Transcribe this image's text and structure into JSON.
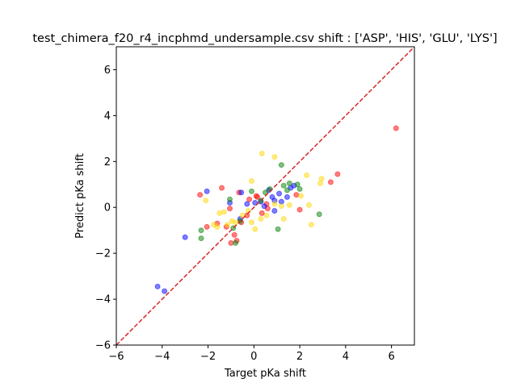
{
  "chart_data": {
    "type": "scatter",
    "title": "test_chimera_f20_r4_incphmd_undersample.csv shift : ['ASP', 'HIS', 'GLU', 'LYS']",
    "xlabel": "Target pKa shift",
    "ylabel": "Predict pKa shift",
    "xlim": [
      -6,
      7
    ],
    "ylim": [
      -6,
      7
    ],
    "xticks": [
      -6,
      -4,
      -2,
      0,
      2,
      4,
      6
    ],
    "yticks": [
      -6,
      -4,
      -2,
      0,
      2,
      4,
      6
    ],
    "xtick_labels": [
      "−6",
      "−4",
      "−2",
      "0",
      "2",
      "4",
      "6"
    ],
    "ytick_labels": [
      "−6",
      "−4",
      "−2",
      "0",
      "2",
      "4",
      "6"
    ],
    "grid": false,
    "reference_line": {
      "from": [
        -6,
        -6
      ],
      "to": [
        7,
        7
      ],
      "color": "#d62728",
      "style": "dashed"
    },
    "series": [
      {
        "color": "#ff0000",
        "points": [
          [
            6.2,
            3.45
          ],
          [
            3.65,
            1.45
          ],
          [
            3.35,
            1.1
          ],
          [
            -2.35,
            0.55
          ],
          [
            -1.4,
            0.85
          ],
          [
            -0.65,
            0.65
          ],
          [
            -0.2,
            0.35
          ],
          [
            0.1,
            0.5
          ],
          [
            -1.05,
            -0.05
          ],
          [
            -1.6,
            -0.7
          ],
          [
            -1.2,
            -0.85
          ],
          [
            -0.85,
            -1.2
          ],
          [
            -0.75,
            -1.45
          ],
          [
            -1.0,
            -1.55
          ],
          [
            -0.55,
            -0.65
          ],
          [
            -0.3,
            -0.35
          ],
          [
            0.35,
            -0.25
          ],
          [
            0.55,
            0.15
          ],
          [
            0.15,
            0.45
          ],
          [
            2.0,
            -0.1
          ],
          [
            1.85,
            0.55
          ],
          [
            -2.05,
            -0.85
          ],
          [
            0.6,
            -0.05
          ]
        ]
      },
      {
        "color": "#0000ff",
        "points": [
          [
            -4.2,
            -3.45
          ],
          [
            -3.9,
            -3.65
          ],
          [
            -3.0,
            -1.3
          ],
          [
            -2.05,
            0.7
          ],
          [
            -1.05,
            0.2
          ],
          [
            -0.55,
            0.65
          ],
          [
            -0.3,
            0.15
          ],
          [
            0.05,
            0.2
          ],
          [
            0.3,
            0.25
          ],
          [
            0.65,
            0.75
          ],
          [
            0.9,
            0.3
          ],
          [
            1.2,
            0.25
          ],
          [
            1.45,
            0.45
          ],
          [
            1.6,
            0.85
          ],
          [
            1.75,
            0.95
          ],
          [
            0.8,
            0.45
          ],
          [
            0.9,
            -0.15
          ],
          [
            -0.6,
            -0.5
          ],
          [
            0.45,
            0.05
          ],
          [
            1.1,
            0.6
          ]
        ]
      },
      {
        "color": "#008000",
        "points": [
          [
            -2.3,
            -1.0
          ],
          [
            -2.3,
            -1.35
          ],
          [
            -1.05,
            0.35
          ],
          [
            -0.9,
            -0.9
          ],
          [
            -0.8,
            -1.55
          ],
          [
            -0.6,
            -0.6
          ],
          [
            0.3,
            0.3
          ],
          [
            0.5,
            0.65
          ],
          [
            1.2,
            1.85
          ],
          [
            1.3,
            0.95
          ],
          [
            1.55,
            1.05
          ],
          [
            1.9,
            1.0
          ],
          [
            2.85,
            -0.3
          ],
          [
            1.05,
            -0.95
          ],
          [
            -0.1,
            0.7
          ],
          [
            0.7,
            0.8
          ],
          [
            1.45,
            0.75
          ],
          [
            2.0,
            0.8
          ]
        ]
      },
      {
        "color": "#ffd700",
        "points": [
          [
            0.35,
            2.35
          ],
          [
            0.9,
            2.2
          ],
          [
            2.3,
            1.4
          ],
          [
            2.95,
            1.25
          ],
          [
            2.9,
            1.05
          ],
          [
            2.4,
            0.1
          ],
          [
            2.5,
            -0.75
          ],
          [
            -0.1,
            1.15
          ],
          [
            -2.1,
            0.3
          ],
          [
            -1.6,
            -0.85
          ],
          [
            -1.5,
            -0.25
          ],
          [
            -1.3,
            -0.2
          ],
          [
            -0.95,
            -0.6
          ],
          [
            -0.5,
            -0.35
          ],
          [
            -0.1,
            -0.65
          ],
          [
            0.05,
            -0.95
          ],
          [
            0.3,
            -0.5
          ],
          [
            0.55,
            -0.35
          ],
          [
            1.3,
            -0.5
          ],
          [
            1.2,
            0.05
          ],
          [
            1.55,
            0.1
          ],
          [
            2.05,
            0.5
          ],
          [
            -0.8,
            -0.65
          ],
          [
            -1.15,
            -0.75
          ],
          [
            -0.25,
            -0.15
          ],
          [
            0.9,
            0.15
          ],
          [
            -1.75,
            -0.75
          ]
        ]
      }
    ]
  }
}
